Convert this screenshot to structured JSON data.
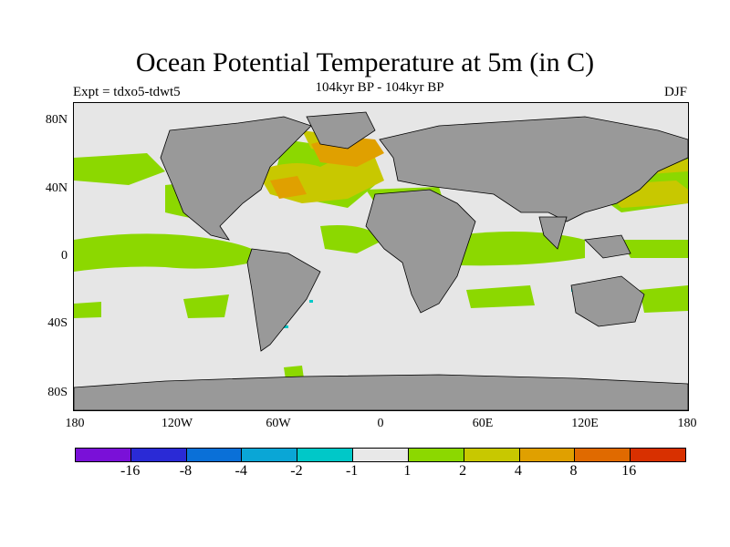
{
  "title": "Ocean Potential Temperature at 5m (in C)",
  "subtitle": "104kyr BP - 104kyr BP",
  "left_label": "Expt = tdxo5-tdwt5",
  "right_label": "DJF",
  "y_ticks": [
    "80N",
    "40N",
    "0",
    "40S",
    "80S"
  ],
  "x_ticks": [
    "180",
    "120W",
    "60W",
    "0",
    "60E",
    "120E",
    "180"
  ],
  "colorbar": {
    "colors": [
      "#7a10d8",
      "#2a2ad6",
      "#0a70d8",
      "#0aa6d6",
      "#00c8c8",
      "#e8e8e8",
      "#8cd800",
      "#c8c800",
      "#e0a000",
      "#e06a00",
      "#d83000"
    ],
    "labels": [
      "-16",
      "-8",
      "-4",
      "-2",
      "-1",
      "1",
      "2",
      "4",
      "8",
      "16"
    ]
  },
  "colors": {
    "land": "#999999",
    "ocean_neutral": "#e6e6e6",
    "warm_1_2": "#8cd800",
    "warm_2_4": "#c8c800",
    "warm_4_8": "#e0a000",
    "cool": "#00c8c8"
  }
}
